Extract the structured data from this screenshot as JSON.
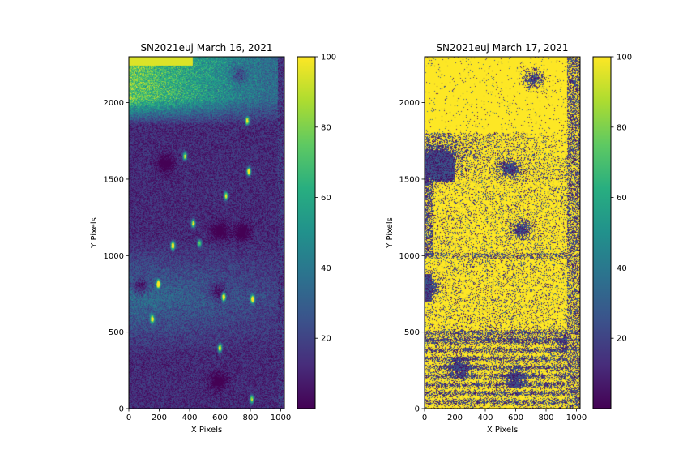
{
  "chart_data": [
    {
      "type": "heatmap",
      "title": "SN2021euj March 16, 2021",
      "xlabel": "X Pixels",
      "ylabel": "Y Pixels",
      "xlim": [
        0,
        1024
      ],
      "ylim": [
        0,
        2300
      ],
      "xticks": [
        0,
        200,
        400,
        600,
        800,
        1000
      ],
      "yticks": [
        0,
        500,
        1000,
        1500,
        2000
      ],
      "colorbar": {
        "min": 0,
        "max": 100,
        "ticks": [
          20,
          40,
          60,
          80,
          100
        ],
        "colormap": "viridis"
      },
      "features": [
        {
          "name": "bright-band",
          "y_range": [
            1850,
            2300
          ],
          "level": 75
        },
        {
          "name": "lower-glow",
          "y_range": [
            350,
            1100
          ],
          "level": 30
        }
      ],
      "stars": [
        {
          "x": 790,
          "y": 1550,
          "level": 100
        },
        {
          "x": 290,
          "y": 1065,
          "level": 100
        },
        {
          "x": 195,
          "y": 815,
          "level": 100
        },
        {
          "x": 625,
          "y": 730,
          "level": 95
        },
        {
          "x": 815,
          "y": 715,
          "level": 90
        },
        {
          "x": 465,
          "y": 1080,
          "level": 60
        },
        {
          "x": 600,
          "y": 395,
          "level": 85
        },
        {
          "x": 640,
          "y": 1390,
          "level": 80
        },
        {
          "x": 425,
          "y": 1210,
          "level": 80
        },
        {
          "x": 155,
          "y": 585,
          "level": 80
        },
        {
          "x": 810,
          "y": 60,
          "level": 70
        },
        {
          "x": 370,
          "y": 1650,
          "level": 70
        },
        {
          "x": 780,
          "y": 1880,
          "level": 80
        }
      ],
      "holes": [
        {
          "x": 240,
          "y": 1600
        },
        {
          "x": 75,
          "y": 800
        },
        {
          "x": 600,
          "y": 1160
        },
        {
          "x": 590,
          "y": 760
        },
        {
          "x": 590,
          "y": 180
        },
        {
          "x": 750,
          "y": 1150
        },
        {
          "x": 725,
          "y": 2180
        }
      ]
    },
    {
      "type": "heatmap",
      "title": "SN2021euj March 17, 2021",
      "xlabel": "X Pixels",
      "ylabel": "Y Pixels",
      "xlim": [
        0,
        1024
      ],
      "ylim": [
        0,
        2300
      ],
      "xticks": [
        0,
        200,
        400,
        600,
        800,
        1000
      ],
      "yticks": [
        0,
        500,
        1000,
        1500,
        2000
      ],
      "colorbar": {
        "min": 0,
        "max": 100,
        "ticks": [
          20,
          40,
          60,
          80,
          100
        ],
        "colormap": "viridis"
      },
      "features": [
        {
          "name": "saturated-top",
          "y_range": [
            1800,
            2300
          ],
          "level": 100
        },
        {
          "name": "noisy-band",
          "y_range": [
            1450,
            1800
          ],
          "level": 50
        },
        {
          "name": "bright-upper",
          "y_range": [
            1000,
            1650
          ],
          "level": 100
        },
        {
          "name": "bright-lower",
          "y_range": [
            520,
            1000
          ],
          "level": 100
        },
        {
          "name": "striped-bottom",
          "y_range": [
            0,
            520
          ],
          "level": 70
        }
      ],
      "holes": [
        {
          "x": 110,
          "y": 1600
        },
        {
          "x": 40,
          "y": 790
        },
        {
          "x": 640,
          "y": 1170
        },
        {
          "x": 720,
          "y": 2155
        },
        {
          "x": 600,
          "y": 200
        },
        {
          "x": 960,
          "y": 420
        },
        {
          "x": 230,
          "y": 270
        },
        {
          "x": 560,
          "y": 1570
        }
      ]
    }
  ]
}
